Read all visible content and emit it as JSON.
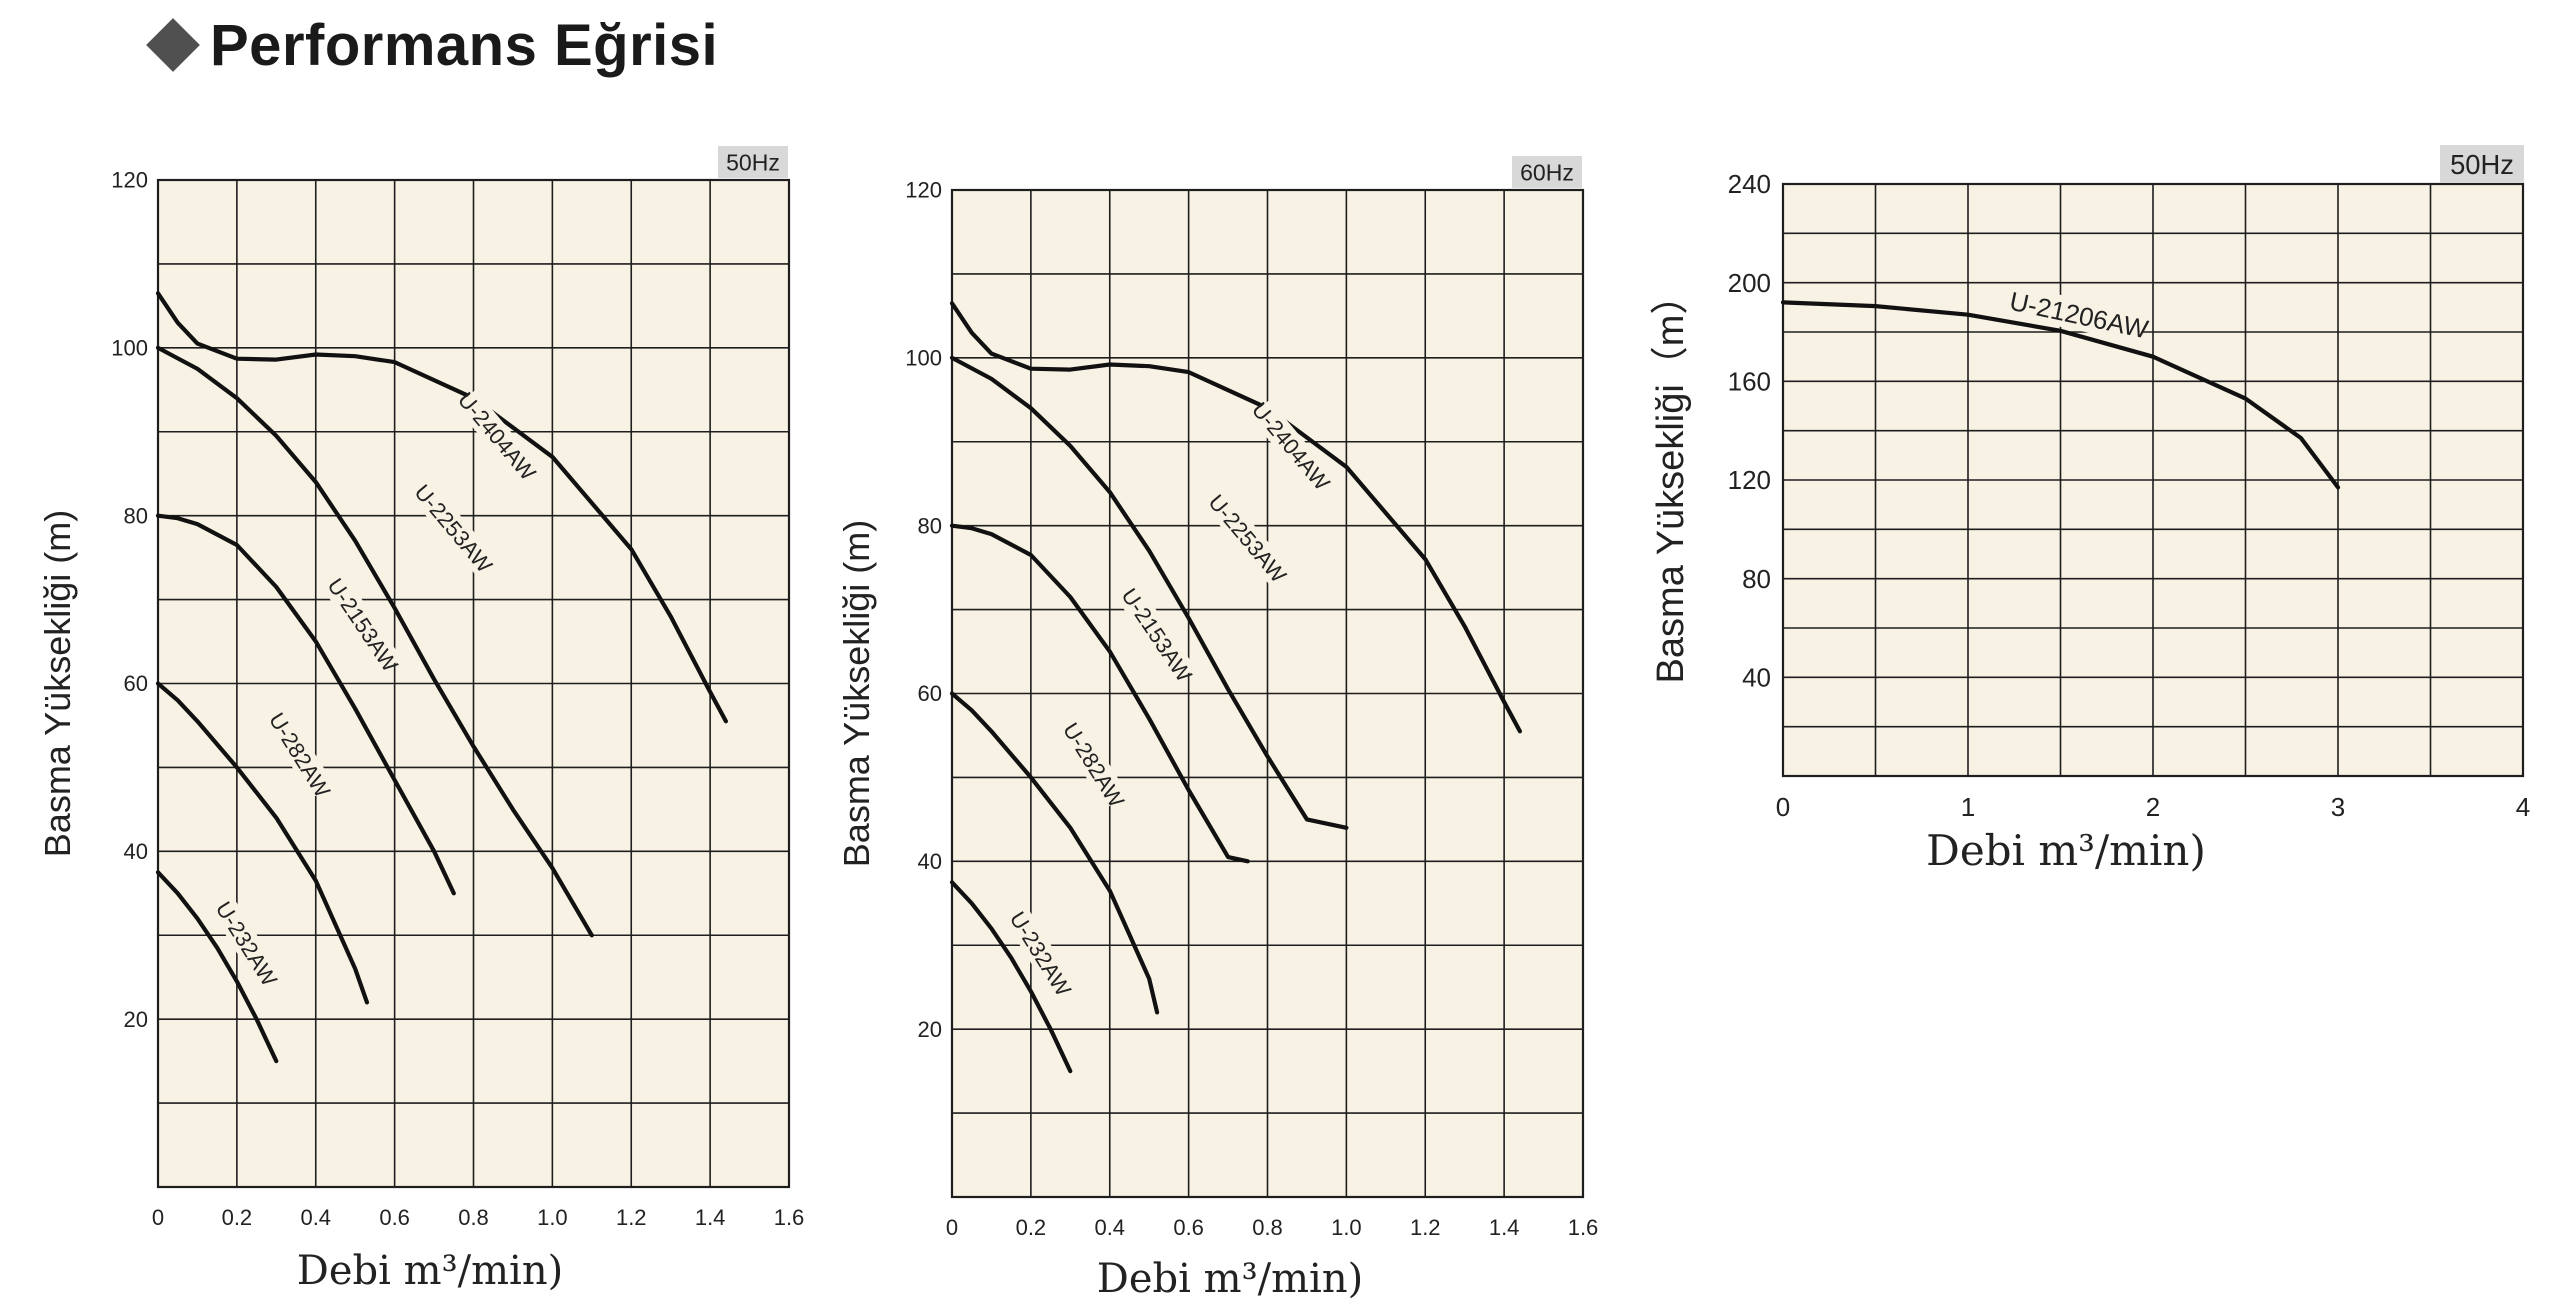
{
  "page": {
    "title": "Performans Eğrisi"
  },
  "colors": {
    "plot_bg": "#f8f2e4",
    "grid": "#1e1e1e",
    "curve": "#111111",
    "badge_bg": "#d8d8d8",
    "diamond": "#505050"
  },
  "chart_data": [
    {
      "type": "line",
      "freq_badge": "50Hz",
      "xlabel": "Debi m³/min)",
      "ylabel": "Basma Yüksekliği (m)",
      "xlim": [
        0,
        1.6
      ],
      "ylim": [
        0,
        120
      ],
      "x_ticks": [
        "0",
        "0.2",
        "0.4",
        "0.6",
        "0.8",
        "1.0",
        "1.2",
        "1.4",
        "1.6"
      ],
      "y_ticks": [
        "20",
        "40",
        "60",
        "80",
        "100",
        "120"
      ],
      "series": [
        {
          "name": "U-2404AW",
          "points": [
            [
              0,
              106.5
            ],
            [
              0.05,
              103
            ],
            [
              0.1,
              100.5
            ],
            [
              0.2,
              98.7
            ],
            [
              0.3,
              98.6
            ],
            [
              0.4,
              99.2
            ],
            [
              0.5,
              99
            ],
            [
              0.6,
              98.3
            ],
            [
              0.8,
              94
            ],
            [
              1.0,
              87
            ],
            [
              1.2,
              76
            ],
            [
              1.3,
              68
            ],
            [
              1.4,
              59
            ],
            [
              1.44,
              55.5
            ]
          ]
        },
        {
          "name": "U-2253AW",
          "points": [
            [
              0,
              100
            ],
            [
              0.1,
              97.5
            ],
            [
              0.2,
              94
            ],
            [
              0.3,
              89.5
            ],
            [
              0.4,
              84
            ],
            [
              0.5,
              77
            ],
            [
              0.6,
              69
            ],
            [
              0.7,
              60.5
            ],
            [
              0.8,
              52.5
            ],
            [
              0.9,
              45
            ],
            [
              1.0,
              38
            ],
            [
              1.05,
              34
            ],
            [
              1.1,
              30
            ],
            [
              1.0,
              44
            ]
          ]
        },
        {
          "name": "U-2153AW",
          "points": [
            [
              0,
              80
            ],
            [
              0.05,
              79.7
            ],
            [
              0.1,
              79
            ],
            [
              0.2,
              76.5
            ],
            [
              0.3,
              71.5
            ],
            [
              0.4,
              65
            ],
            [
              0.5,
              57
            ],
            [
              0.6,
              48.5
            ],
            [
              0.7,
              40
            ],
            [
              0.75,
              35
            ],
            [
              0.75,
              40
            ]
          ]
        },
        {
          "name": "U-282AW",
          "points": [
            [
              0,
              60
            ],
            [
              0.05,
              58
            ],
            [
              0.1,
              55.5
            ],
            [
              0.2,
              50
            ],
            [
              0.3,
              44
            ],
            [
              0.4,
              36.5
            ],
            [
              0.5,
              26
            ],
            [
              0.53,
              22
            ]
          ]
        },
        {
          "name": "U-232AW",
          "points": [
            [
              0,
              37.5
            ],
            [
              0.05,
              35
            ],
            [
              0.1,
              32
            ],
            [
              0.15,
              28.5
            ],
            [
              0.2,
              24.5
            ],
            [
              0.25,
              20
            ],
            [
              0.3,
              15
            ]
          ]
        }
      ]
    },
    {
      "type": "line",
      "freq_badge": "60Hz",
      "xlabel": "Debi m³/min)",
      "ylabel": "Basma Yüksekliği (m)",
      "xlim": [
        0,
        1.6
      ],
      "ylim": [
        0,
        120
      ],
      "x_ticks": [
        "0",
        "0.2",
        "0.4",
        "0.6",
        "0.8",
        "1.0",
        "1.2",
        "1.4",
        "1.6"
      ],
      "y_ticks": [
        "20",
        "40",
        "60",
        "80",
        "100",
        "120"
      ],
      "series": [
        {
          "name": "U-2404AW",
          "points": [
            [
              0,
              106.5
            ],
            [
              0.05,
              103
            ],
            [
              0.1,
              100.5
            ],
            [
              0.2,
              98.7
            ],
            [
              0.3,
              98.6
            ],
            [
              0.4,
              99.2
            ],
            [
              0.5,
              99
            ],
            [
              0.6,
              98.3
            ],
            [
              0.8,
              94
            ],
            [
              1.0,
              87
            ],
            [
              1.2,
              76
            ],
            [
              1.3,
              68
            ],
            [
              1.4,
              59
            ],
            [
              1.44,
              55.5
            ]
          ]
        },
        {
          "name": "U-2253AW",
          "points": [
            [
              0,
              100
            ],
            [
              0.1,
              97.5
            ],
            [
              0.2,
              94
            ],
            [
              0.3,
              89.5
            ],
            [
              0.4,
              84
            ],
            [
              0.5,
              77
            ],
            [
              0.6,
              69
            ],
            [
              0.7,
              60.5
            ],
            [
              0.8,
              52.5
            ],
            [
              0.9,
              45
            ],
            [
              1.0,
              44
            ]
          ]
        },
        {
          "name": "U-2153AW",
          "points": [
            [
              0,
              80
            ],
            [
              0.05,
              79.7
            ],
            [
              0.1,
              79
            ],
            [
              0.2,
              76.5
            ],
            [
              0.3,
              71.5
            ],
            [
              0.4,
              65
            ],
            [
              0.5,
              57
            ],
            [
              0.6,
              48.5
            ],
            [
              0.7,
              40.5
            ],
            [
              0.75,
              40
            ]
          ]
        },
        {
          "name": "U-282AW",
          "points": [
            [
              0,
              60
            ],
            [
              0.05,
              58
            ],
            [
              0.1,
              55.5
            ],
            [
              0.2,
              50
            ],
            [
              0.3,
              44
            ],
            [
              0.4,
              36.5
            ],
            [
              0.5,
              26
            ],
            [
              0.52,
              22
            ]
          ]
        },
        {
          "name": "U-232AW",
          "points": [
            [
              0,
              37.5
            ],
            [
              0.05,
              35
            ],
            [
              0.1,
              32
            ],
            [
              0.15,
              28.5
            ],
            [
              0.2,
              24.5
            ],
            [
              0.25,
              20
            ],
            [
              0.3,
              15
            ]
          ]
        }
      ]
    },
    {
      "type": "line",
      "freq_badge": "50Hz",
      "xlabel": "Debi m³/min)",
      "ylabel": "Basma Yüksekliği（m）",
      "xlim": [
        0,
        4
      ],
      "ylim": [
        0,
        240
      ],
      "x_ticks": [
        "0",
        "1",
        "2",
        "3",
        "4"
      ],
      "y_ticks": [
        "40",
        "80",
        "120",
        "160",
        "200",
        "240"
      ],
      "series": [
        {
          "name": "U-21206AW",
          "points": [
            [
              0,
              192
            ],
            [
              0.5,
              190.5
            ],
            [
              1.0,
              187
            ],
            [
              1.5,
              180.5
            ],
            [
              2.0,
              170
            ],
            [
              2.5,
              153
            ],
            [
              2.8,
              137
            ],
            [
              3.0,
              117
            ]
          ]
        }
      ]
    }
  ]
}
